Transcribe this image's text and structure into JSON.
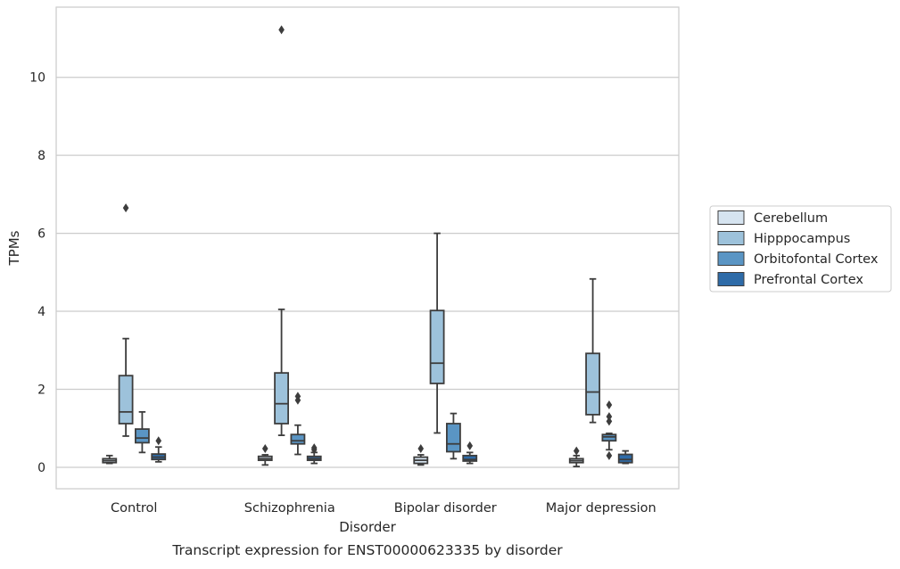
{
  "chart_data": {
    "type": "box",
    "title": "Transcript expression for ENST00000623335 by disorder",
    "xlabel": "Disorder",
    "ylabel": "TPMs",
    "ylim": [
      -0.55,
      11.8
    ],
    "yticks": [
      0,
      2,
      4,
      6,
      8,
      10
    ],
    "grid": true,
    "legend_position": "right",
    "categories": [
      "Control",
      "Schizophrenia",
      "Bipolar disorder",
      "Major depression"
    ],
    "series": [
      {
        "name": "Cerebellum",
        "color": "#d6e4f0",
        "boxes": [
          {
            "whislo": 0.1,
            "q1": 0.12,
            "med": 0.17,
            "q3": 0.22,
            "whishi": 0.3,
            "fliers": []
          },
          {
            "whislo": 0.06,
            "q1": 0.18,
            "med": 0.22,
            "q3": 0.28,
            "whishi": 0.32,
            "fliers": [
              0.48
            ]
          },
          {
            "whislo": 0.06,
            "q1": 0.1,
            "med": 0.18,
            "q3": 0.26,
            "whishi": 0.32,
            "fliers": [
              0.48
            ]
          },
          {
            "whislo": 0.02,
            "q1": 0.12,
            "med": 0.17,
            "q3": 0.22,
            "whishi": 0.3,
            "fliers": [
              0.42
            ]
          }
        ]
      },
      {
        "name": "Hipppocampus",
        "color": "#9dc2db",
        "boxes": [
          {
            "whislo": 0.8,
            "q1": 1.12,
            "med": 1.42,
            "q3": 2.35,
            "whishi": 3.3,
            "fliers": [
              6.65
            ]
          },
          {
            "whislo": 0.82,
            "q1": 1.12,
            "med": 1.63,
            "q3": 2.42,
            "whishi": 4.05,
            "fliers": [
              11.22
            ]
          },
          {
            "whislo": 0.88,
            "q1": 2.15,
            "med": 2.67,
            "q3": 4.02,
            "whishi": 6.0,
            "fliers": []
          },
          {
            "whislo": 1.15,
            "q1": 1.35,
            "med": 1.93,
            "q3": 2.92,
            "whishi": 4.83,
            "fliers": []
          }
        ]
      },
      {
        "name": "Orbitofontal Cortex",
        "color": "#5a95c4",
        "boxes": [
          {
            "whislo": 0.38,
            "q1": 0.63,
            "med": 0.75,
            "q3": 0.98,
            "whishi": 1.42,
            "fliers": []
          },
          {
            "whislo": 0.33,
            "q1": 0.6,
            "med": 0.68,
            "q3": 0.84,
            "whishi": 1.08,
            "fliers": [
              1.72,
              1.82
            ]
          },
          {
            "whislo": 0.22,
            "q1": 0.4,
            "med": 0.6,
            "q3": 1.12,
            "whishi": 1.38,
            "fliers": []
          },
          {
            "whislo": 0.45,
            "q1": 0.68,
            "med": 0.78,
            "q3": 0.84,
            "whishi": 0.87,
            "fliers": [
              0.3,
              1.18,
              1.3,
              1.6
            ]
          }
        ]
      },
      {
        "name": "Prefrontal Cortex",
        "color": "#2e6ba8",
        "boxes": [
          {
            "whislo": 0.14,
            "q1": 0.2,
            "med": 0.26,
            "q3": 0.34,
            "whishi": 0.52,
            "fliers": [
              0.68
            ]
          },
          {
            "whislo": 0.1,
            "q1": 0.18,
            "med": 0.22,
            "q3": 0.28,
            "whishi": 0.38,
            "fliers": [
              0.45,
              0.5
            ]
          },
          {
            "whislo": 0.1,
            "q1": 0.16,
            "med": 0.2,
            "q3": 0.3,
            "whishi": 0.38,
            "fliers": [
              0.55
            ]
          },
          {
            "whislo": 0.1,
            "q1": 0.12,
            "med": 0.2,
            "q3": 0.33,
            "whishi": 0.42,
            "fliers": []
          }
        ]
      }
    ]
  }
}
